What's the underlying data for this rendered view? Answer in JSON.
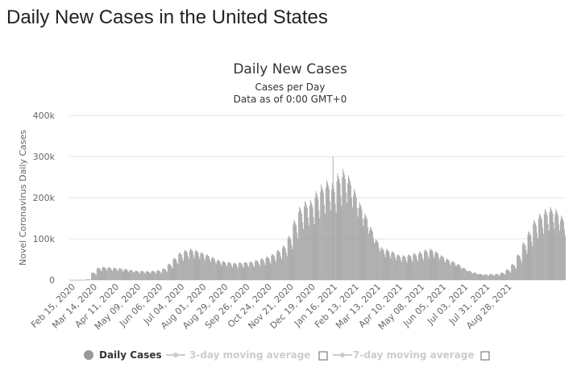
{
  "page": {
    "heading": "Daily New Cases in the United States"
  },
  "chart_data": {
    "type": "bar",
    "title": "Daily New Cases",
    "subtitle_1": "Cases per Day",
    "subtitle_2": "Data as of 0:00 GMT+0",
    "ylabel": "Novel Coronavirus Daily Cases",
    "xlabel": "",
    "ylim": [
      0,
      400000
    ],
    "y_ticks": [
      0,
      100000,
      200000,
      300000,
      400000
    ],
    "y_tick_labels": [
      "0",
      "100k",
      "200k",
      "300k",
      "400k"
    ],
    "x_tick_labels": [
      "Feb 15, 2020",
      "Mar 14, 2020",
      "Apr 11, 2020",
      "May 09, 2020",
      "Jun 06, 2020",
      "Jul 04, 2020",
      "Aug 01, 2020",
      "Aug 29, 2020",
      "Sep 26, 2020",
      "Oct 24, 2020",
      "Nov 21, 2020",
      "Dec 19, 2020",
      "Jan 16, 2021",
      "Feb 13, 2021",
      "Mar 13, 2021",
      "Apr 10, 2021",
      "May 08, 2021",
      "Jun 05, 2021",
      "Jul 03, 2021",
      "Jul 31, 2021",
      "Aug 28, 2021"
    ],
    "grid": true,
    "legend_position": "bottom",
    "bar_color": "#999999",
    "series": [
      {
        "name": "Daily Cases",
        "start_date": "Feb 15, 2020",
        "interval": "weekly",
        "values": [
          50,
          60,
          150,
          1500,
          17000,
          28000,
          30000,
          29000,
          28000,
          27000,
          25000,
          23000,
          21000,
          21000,
          20000,
          21000,
          22000,
          26000,
          37000,
          50000,
          62000,
          68000,
          71000,
          68000,
          63000,
          58000,
          52000,
          46000,
          43000,
          41000,
          39000,
          40000,
          41000,
          42000,
          45000,
          49000,
          53000,
          59000,
          68000,
          78000,
          100000,
          135000,
          165000,
          178000,
          180000,
          200000,
          215000,
          225000,
          218000,
          240000,
          250000,
          235000,
          205000,
          175000,
          150000,
          120000,
          92000,
          74000,
          70000,
          65000,
          58000,
          56000,
          58000,
          61000,
          64000,
          69000,
          71000,
          65000,
          56000,
          48000,
          43000,
          36000,
          28000,
          21000,
          17000,
          14000,
          13000,
          13500,
          14000,
          17000,
          24000,
          36000,
          58000,
          85000,
          110000,
          135000,
          150000,
          160000,
          165000,
          160000,
          145000
        ],
        "visible": true
      },
      {
        "name": "3-day moving average",
        "visible": false
      },
      {
        "name": "7-day moving average",
        "visible": false
      }
    ],
    "peak_annotation_max": 300000
  },
  "colors": {
    "bars": "#999999",
    "grid": "#e6e6e6",
    "legend_active": "#333333",
    "legend_inactive": "#cccccc"
  }
}
